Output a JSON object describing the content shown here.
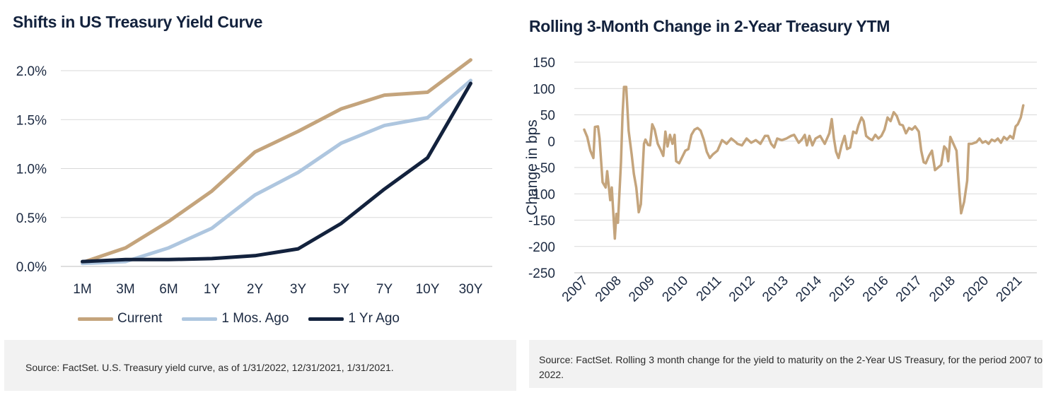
{
  "left_panel": {
    "title": "Shifts in US Treasury Yield Curve",
    "source": "Source: FactSet. U.S. Treasury yield curve, as of 1/31/2022, 12/31/2021, 1/31/2021."
  },
  "right_panel": {
    "title": "Rolling 3-Month Change in 2-Year Treasury YTM",
    "source": "Source: FactSet. Rolling 3 month change for the yield to maturity on the 2-Year US Treasury, for the period 2007 to 2022."
  },
  "chart_data": [
    {
      "type": "line",
      "title": "Shifts in US Treasury Yield Curve",
      "categories": [
        "1M",
        "3M",
        "6M",
        "1Y",
        "2Y",
        "3Y",
        "5Y",
        "7Y",
        "10Y",
        "30Y"
      ],
      "series": [
        {
          "name": "Current",
          "color": "#c4a47c",
          "values": [
            0.04,
            0.19,
            0.46,
            0.77,
            1.17,
            1.38,
            1.61,
            1.75,
            1.78,
            2.11
          ]
        },
        {
          "name": "1 Mos. Ago",
          "color": "#aec6df",
          "values": [
            0.03,
            0.05,
            0.19,
            0.39,
            0.73,
            0.96,
            1.26,
            1.44,
            1.52,
            1.9
          ]
        },
        {
          "name": "1 Yr Ago",
          "color": "#13223d",
          "values": [
            0.05,
            0.07,
            0.07,
            0.08,
            0.11,
            0.18,
            0.44,
            0.79,
            1.11,
            1.87
          ]
        }
      ],
      "ylim": [
        0,
        2.0
      ],
      "yticks": [
        "0.0%",
        "0.5%",
        "1.0%",
        "1.5%",
        "2.0%"
      ],
      "grid": true,
      "legend": "bottom"
    },
    {
      "type": "line",
      "title": "Rolling 3-Month Change in 2-Year Treasury YTM",
      "ylabel": "Change in bps",
      "ylim": [
        -250,
        150
      ],
      "yticks": [
        150,
        100,
        50,
        0,
        -50,
        -100,
        -150,
        -200,
        -250
      ],
      "xticks": [
        "2007",
        "2008",
        "2009",
        "2010",
        "2011",
        "2012",
        "2013",
        "2014",
        "2015",
        "2016",
        "2017",
        "2018",
        "2020",
        "2021"
      ],
      "grid": true,
      "series": [
        {
          "name": "",
          "color": "#c4a47c",
          "points": [
            [
              2007.0,
              22
            ],
            [
              2007.1,
              8
            ],
            [
              2007.2,
              -18
            ],
            [
              2007.3,
              -32
            ],
            [
              2007.35,
              27
            ],
            [
              2007.45,
              28
            ],
            [
              2007.5,
              5
            ],
            [
              2007.6,
              -78
            ],
            [
              2007.7,
              -88
            ],
            [
              2007.75,
              -57
            ],
            [
              2007.85,
              -112
            ],
            [
              2007.9,
              -88
            ],
            [
              2008.0,
              -185
            ],
            [
              2008.05,
              -138
            ],
            [
              2008.1,
              -155
            ],
            [
              2008.2,
              -40
            ],
            [
              2008.25,
              50
            ],
            [
              2008.3,
              103
            ],
            [
              2008.37,
              103
            ],
            [
              2008.45,
              20
            ],
            [
              2008.55,
              -25
            ],
            [
              2008.62,
              -62
            ],
            [
              2008.7,
              -88
            ],
            [
              2008.78,
              -135
            ],
            [
              2008.85,
              -120
            ],
            [
              2008.95,
              -5
            ],
            [
              2009.0,
              3
            ],
            [
              2009.08,
              -7
            ],
            [
              2009.15,
              -8
            ],
            [
              2009.22,
              32
            ],
            [
              2009.3,
              22
            ],
            [
              2009.4,
              -5
            ],
            [
              2009.5,
              -17
            ],
            [
              2009.58,
              -28
            ],
            [
              2009.65,
              18
            ],
            [
              2009.72,
              -10
            ],
            [
              2009.8,
              12
            ],
            [
              2009.88,
              -5
            ],
            [
              2009.95,
              12
            ],
            [
              2010.0,
              -38
            ],
            [
              2010.1,
              -42
            ],
            [
              2010.2,
              -30
            ],
            [
              2010.3,
              -18
            ],
            [
              2010.4,
              -15
            ],
            [
              2010.5,
              12
            ],
            [
              2010.6,
              22
            ],
            [
              2010.7,
              25
            ],
            [
              2010.8,
              20
            ],
            [
              2010.9,
              3
            ],
            [
              2011.0,
              -20
            ],
            [
              2011.1,
              -32
            ],
            [
              2011.2,
              -25
            ],
            [
              2011.35,
              -18
            ],
            [
              2011.5,
              2
            ],
            [
              2011.65,
              -5
            ],
            [
              2011.8,
              5
            ],
            [
              2011.95,
              -2
            ],
            [
              2012.0,
              -5
            ],
            [
              2012.15,
              -8
            ],
            [
              2012.3,
              5
            ],
            [
              2012.45,
              -3
            ],
            [
              2012.6,
              2
            ],
            [
              2012.75,
              -5
            ],
            [
              2012.9,
              10
            ],
            [
              2013.0,
              10
            ],
            [
              2013.1,
              -5
            ],
            [
              2013.2,
              -12
            ],
            [
              2013.3,
              5
            ],
            [
              2013.45,
              2
            ],
            [
              2013.6,
              5
            ],
            [
              2013.75,
              10
            ],
            [
              2013.85,
              12
            ],
            [
              2014.0,
              -3
            ],
            [
              2014.1,
              3
            ],
            [
              2014.2,
              12
            ],
            [
              2014.27,
              -8
            ],
            [
              2014.35,
              10
            ],
            [
              2014.45,
              -8
            ],
            [
              2014.55,
              5
            ],
            [
              2014.7,
              10
            ],
            [
              2014.85,
              -5
            ],
            [
              2015.0,
              15
            ],
            [
              2015.08,
              42
            ],
            [
              2015.15,
              5
            ],
            [
              2015.22,
              -20
            ],
            [
              2015.3,
              -32
            ],
            [
              2015.4,
              -8
            ],
            [
              2015.5,
              10
            ],
            [
              2015.58,
              -15
            ],
            [
              2015.68,
              -12
            ],
            [
              2015.78,
              18
            ],
            [
              2015.88,
              15
            ],
            [
              2015.95,
              30
            ],
            [
              2016.05,
              45
            ],
            [
              2016.12,
              38
            ],
            [
              2016.2,
              10
            ],
            [
              2016.3,
              5
            ],
            [
              2016.4,
              2
            ],
            [
              2016.5,
              12
            ],
            [
              2016.6,
              5
            ],
            [
              2016.7,
              10
            ],
            [
              2016.8,
              22
            ],
            [
              2016.9,
              45
            ],
            [
              2017.0,
              38
            ],
            [
              2017.1,
              55
            ],
            [
              2017.2,
              48
            ],
            [
              2017.3,
              32
            ],
            [
              2017.4,
              30
            ],
            [
              2017.5,
              15
            ],
            [
              2017.6,
              25
            ],
            [
              2017.7,
              22
            ],
            [
              2017.8,
              28
            ],
            [
              2017.92,
              18
            ],
            [
              2018.0,
              -18
            ],
            [
              2018.08,
              -40
            ],
            [
              2018.15,
              -42
            ],
            [
              2018.25,
              -28
            ],
            [
              2018.35,
              -18
            ],
            [
              2018.45,
              -55
            ],
            [
              2018.55,
              -50
            ],
            [
              2018.65,
              -45
            ],
            [
              2018.75,
              -10
            ],
            [
              2018.82,
              -15
            ],
            [
              2018.88,
              -38
            ],
            [
              2018.95,
              8
            ],
            [
              2019.05,
              -5
            ],
            [
              2019.15,
              -18
            ],
            [
              2019.25,
              -100
            ],
            [
              2019.3,
              -137
            ],
            [
              2019.4,
              -115
            ],
            [
              2019.5,
              -75
            ],
            [
              2019.55,
              -5
            ],
            [
              2019.65,
              -5
            ],
            [
              2019.8,
              -2
            ],
            [
              2019.9,
              5
            ],
            [
              2020.0,
              -3
            ],
            [
              2020.1,
              0
            ],
            [
              2020.2,
              -5
            ],
            [
              2020.3,
              3
            ],
            [
              2020.4,
              0
            ],
            [
              2020.5,
              5
            ],
            [
              2020.6,
              -3
            ],
            [
              2020.7,
              8
            ],
            [
              2020.8,
              3
            ],
            [
              2020.9,
              10
            ],
            [
              2021.0,
              5
            ],
            [
              2021.08,
              28
            ],
            [
              2021.15,
              32
            ],
            [
              2021.25,
              45
            ],
            [
              2021.33,
              68
            ]
          ]
        }
      ]
    }
  ]
}
